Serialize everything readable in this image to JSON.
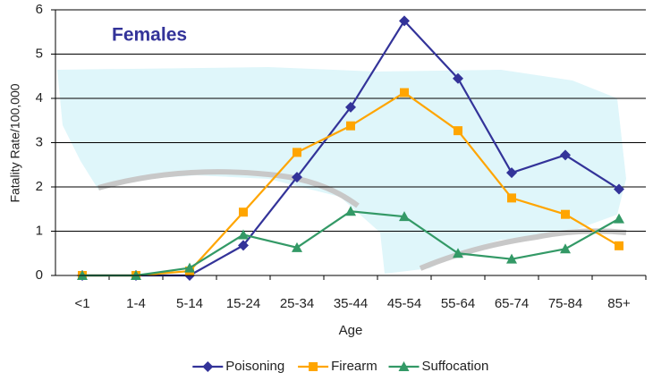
{
  "chart_data": {
    "type": "line",
    "title": "Females",
    "x_label": "Age",
    "y_label": "Fatality Rate/100,000",
    "categories": [
      "<1",
      "1-4",
      "5-14",
      "15-24",
      "25-34",
      "35-44",
      "45-54",
      "55-64",
      "65-74",
      "75-84",
      "85+"
    ],
    "series": [
      {
        "name": "Poisoning",
        "color": "#333399",
        "marker": "diamond",
        "values": [
          0,
          0,
          0,
          0.68,
          2.22,
          3.8,
          5.75,
          4.45,
          2.32,
          2.72,
          1.95
        ]
      },
      {
        "name": "Firearm",
        "color": "#ffa500",
        "marker": "square",
        "values": [
          0,
          0,
          0.1,
          1.43,
          2.78,
          3.38,
          4.13,
          3.27,
          1.75,
          1.38,
          0.67
        ]
      },
      {
        "name": "Suffocation",
        "color": "#339966",
        "marker": "triangle",
        "values": [
          0,
          0,
          0.17,
          0.92,
          0.63,
          1.45,
          1.33,
          0.5,
          0.37,
          0.6,
          1.28
        ]
      }
    ],
    "ylim": [
      0,
      6
    ],
    "yticks": [
      0,
      1,
      2,
      3,
      4,
      5,
      6
    ],
    "grid": true,
    "legend": "bottom"
  }
}
